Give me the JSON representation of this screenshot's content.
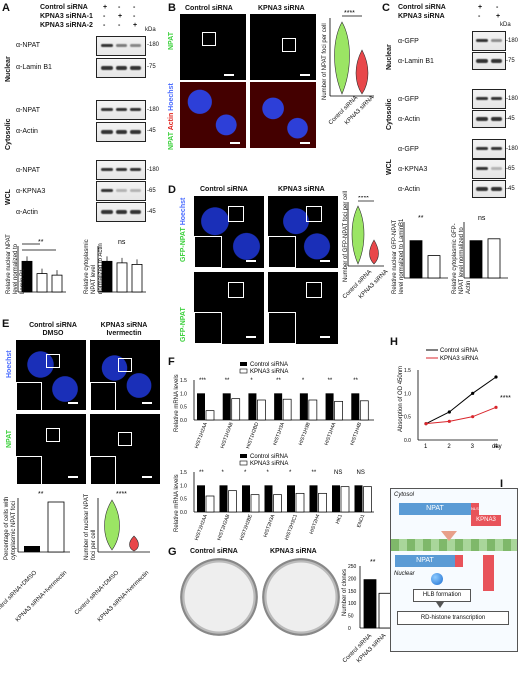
{
  "panels": [
    "A",
    "B",
    "C",
    "D",
    "E",
    "F",
    "G",
    "H",
    "I"
  ],
  "kda": "kDa",
  "panel_a": {
    "rows": [
      "Control siRNA",
      "KPNA3 siRNA-1",
      "KPNA3 siRNA-2"
    ],
    "marks": [
      [
        "+",
        "-",
        "-"
      ],
      [
        "-",
        "+",
        "-"
      ],
      [
        "-",
        "-",
        "+"
      ]
    ],
    "sections": [
      "Nuclear",
      "Cytosolic",
      "WCL"
    ],
    "blots": [
      "α-NPAT",
      "α-Lamin B1",
      "α-NPAT",
      "α-Actin",
      "α-NPAT",
      "α-KPNA3",
      "α-Actin"
    ],
    "mw": [
      "-180",
      "-75",
      "-180",
      "-45",
      "-180",
      "-65",
      "-45"
    ]
  },
  "panel_b": {
    "cols": [
      "Control siRNA",
      "KPNA3 siRNA"
    ],
    "row1": "NPAT",
    "row2_parts": [
      "NPAT",
      "Actin",
      "Hoechst"
    ],
    "sig": "****",
    "ylabel": "Number of NPAT foci per cell",
    "xcats": [
      "Control siRNA",
      "KPNA3 siRNA"
    ]
  },
  "panel_c": {
    "rows": [
      "Control siRNA",
      "KPNA3 siRNA"
    ],
    "marks": [
      [
        "+",
        "-"
      ],
      [
        "-",
        "+"
      ]
    ],
    "sections": [
      "Nuclear",
      "Cytosolic",
      "WCL"
    ],
    "blots": [
      "α-GFP",
      "α-Lamin B1",
      "α-GFP",
      "α-Actin",
      "α-GFP",
      "α-KPNA3",
      "α-Actin"
    ],
    "mw": [
      "-180",
      "-75",
      "-180",
      "-45",
      "-180",
      "-65",
      "-45"
    ]
  },
  "panel_d": {
    "cols": [
      "Control siRNA",
      "KPNA3 siRNA"
    ],
    "row1_parts": [
      "GFP-NPAT",
      "Hoechst"
    ],
    "row2": "GFP-NPAT",
    "sig": "****",
    "ylabel": "Number of GFP-NPAT foci per cell",
    "xcats": [
      "Control siRNA",
      "KPNA3 siRNA"
    ],
    "bar1_ylabel": "Relative nuclear GFP-NPAT level normalized to LaminB1",
    "bar1_sig": "**",
    "bar2_ylabel": "Relative cytoplasmic GFP-NPAT level normalized to Actin",
    "bar2_sig": "ns",
    "yticks": [
      "1.5",
      "1.0",
      "0.5",
      "0.0"
    ]
  },
  "panel_e": {
    "cols": [
      "Control siRNA\nDMSO",
      "KPNA3 siRNA\nIvermectin"
    ],
    "col1a": "Control siRNA",
    "col1b": "DMSO",
    "col2a": "KPNA3 siRNA",
    "col2b": "Ivermectin",
    "row1": "Hoechst",
    "row2": "NPAT",
    "bar_ylabel": "Percentage of cells with cytoplasmic NPAT foci",
    "bar_sig": "**",
    "bar_cats": [
      "Control siRNA+DMSO",
      "KPNA3 siRNA+Ivermectin"
    ],
    "violin_ylabel": "Number of nuclear NPAT foci per cell",
    "violin_sig": "****",
    "violin_cats": [
      "Control siRNA+DMSO",
      "KPNA3 siRNA+Ivermectin"
    ]
  },
  "panel_a_bars": {
    "bar1_ylabel": "Relative nuclear NPAT level normalized to Lamin B1",
    "bar1_sig": "**",
    "bar1_sig2": "**",
    "bar2_ylabel": "Relative cytoplasmic NPAT level normalized to Actin",
    "bar2_sig": "ns",
    "cats": [
      "Control siRNA",
      "KPNA3 siRNA-1",
      "KPNA3 siRNA-2"
    ]
  },
  "panel_f": {
    "legend": [
      "Control siRNA",
      "KPNA3 siRNA"
    ],
    "ylabel": "Relative mRNA levels",
    "yticks": [
      "1.5",
      "1.0",
      "0.5",
      "0.0"
    ]
  },
  "panel_g": {
    "cols": [
      "Control siRNA",
      "KPNA3 siRNA"
    ],
    "ylabel": "Number of clones",
    "yticks": [
      "250",
      "200",
      "150",
      "100",
      "50",
      "0"
    ],
    "sig": "**",
    "cats": [
      "Control siRNA",
      "KPNA3 siRNA"
    ]
  },
  "panel_h": {
    "legend": [
      "Control siRNA",
      "KPNA3 siRNA"
    ],
    "ylabel": "Absorption of OD 450nm",
    "xlabel": "day",
    "sig": "****",
    "yticks": [
      "1.5",
      "1.0",
      "0.5",
      "0.0"
    ],
    "xticks": [
      "1",
      "2",
      "3",
      "4"
    ]
  },
  "panel_i": {
    "cytosol": "Cytosol",
    "nuclear": "Nuclear",
    "npat": "NPAT",
    "nls": "NLS",
    "kpna3": "KPNA3",
    "hlb": "HLB formation",
    "rd": "RD-histone transcription"
  },
  "colors": {
    "control": "#000000",
    "kpna3": "#d9262c",
    "violin_green": "#9be564",
    "violin_red": "#e8474a",
    "npat_bar": "#5b9bd5",
    "kpna3_box": "#e8535a"
  },
  "chart_data": [
    {
      "type": "bar",
      "title": "",
      "ylabel": "Relative nuclear NPAT level normalized to Lamin B1",
      "categories": [
        "Control siRNA",
        "KPNA3 siRNA-1",
        "KPNA3 siRNA-2"
      ],
      "values": [
        1.0,
        0.6,
        0.55
      ],
      "ylim": [
        0,
        1.5
      ]
    },
    {
      "type": "bar",
      "title": "",
      "ylabel": "Relative cytoplasmic NPAT level normalized to Actin",
      "categories": [
        "Control siRNA",
        "KPNA3 siRNA-1",
        "KPNA3 siRNA-2"
      ],
      "values": [
        1.0,
        0.95,
        0.9
      ],
      "ylim": [
        0,
        1.5
      ]
    },
    {
      "type": "bar",
      "title": "",
      "ylabel": "Relative mRNA levels",
      "categories": [
        "HIST1H2AA",
        "HIST1H2AB",
        "HIST1H2BD",
        "HIST1H3A",
        "HIST1H3B",
        "HIST1H4A",
        "HIST1H4B"
      ],
      "series": [
        {
          "name": "Control siRNA",
          "values": [
            1.0,
            1.0,
            1.0,
            1.0,
            1.0,
            1.0,
            1.0
          ]
        },
        {
          "name": "KPNA3 siRNA",
          "values": [
            0.35,
            0.8,
            0.75,
            0.78,
            0.75,
            0.7,
            0.72
          ]
        }
      ],
      "sig": [
        "***",
        "**",
        "*",
        "**",
        "*",
        "**",
        "**"
      ],
      "ylim": [
        0,
        1.5
      ]
    },
    {
      "type": "bar",
      "title": "",
      "ylabel": "Relative mRNA levels",
      "categories": [
        "HIST2H2AA",
        "HIST2H2AB",
        "HIST2H2BE",
        "HIST2H3A",
        "HIST2H3C1",
        "HIST2H4",
        "HK1",
        "ENO1"
      ],
      "series": [
        {
          "name": "Control siRNA",
          "values": [
            1.0,
            1.0,
            1.0,
            1.0,
            1.0,
            1.0,
            1.0,
            1.0
          ]
        },
        {
          "name": "KPNA3 siRNA",
          "values": [
            0.6,
            0.8,
            0.65,
            0.65,
            0.7,
            0.7,
            0.95,
            0.95
          ]
        }
      ],
      "sig": [
        "**",
        "*",
        "*",
        "*",
        "*",
        "**",
        "NS",
        "NS"
      ],
      "ylim": [
        0,
        1.5
      ]
    },
    {
      "type": "bar",
      "title": "",
      "ylabel": "Number of clones",
      "categories": [
        "Control siRNA",
        "KPNA3 siRNA"
      ],
      "values": [
        195,
        140
      ],
      "ylim": [
        0,
        250
      ]
    },
    {
      "type": "line",
      "title": "",
      "ylabel": "Absorption of OD 450nm",
      "xlabel": "day",
      "x": [
        1,
        2,
        3,
        4
      ],
      "series": [
        {
          "name": "Control siRNA",
          "values": [
            0.35,
            0.6,
            1.0,
            1.35
          ]
        },
        {
          "name": "KPNA3 siRNA",
          "values": [
            0.35,
            0.4,
            0.5,
            0.7
          ]
        }
      ],
      "ylim": [
        0,
        1.5
      ]
    }
  ]
}
